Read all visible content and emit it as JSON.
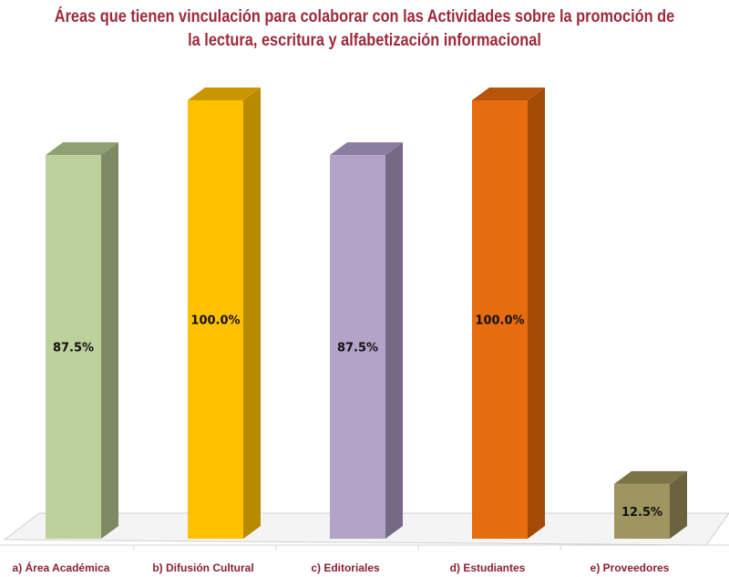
{
  "chart_data": {
    "type": "bar",
    "title_lines": [
      "Áreas que tienen vinculación para colaborar con las Actividades sobre la promoción de",
      "la lectura, escritura y alfabetización informacional"
    ],
    "categories": [
      "a) Área Académica",
      "b) Difusión Cultural",
      "c) Editoriales",
      "d) Estudiantes",
      "e) Proveedores"
    ],
    "values": [
      87.5,
      100.0,
      87.5,
      100.0,
      12.5
    ],
    "data_labels": [
      "87.5%",
      "100.0%",
      "87.5%",
      "100.0%",
      "12.5%"
    ],
    "colors": [
      "#bdd19c",
      "#ffc000",
      "#b3a3c9",
      "#e66c0f",
      "#9f9560"
    ],
    "side_colors": [
      "#7d8a63",
      "#b88a00",
      "#756a85",
      "#a24b07",
      "#6a633e"
    ],
    "top_colors": [
      "#8fa072",
      "#c99600",
      "#8b7d9f",
      "#b75407",
      "#7c7447"
    ],
    "ylim": [
      0,
      100
    ],
    "grid": false,
    "legend": "none"
  }
}
